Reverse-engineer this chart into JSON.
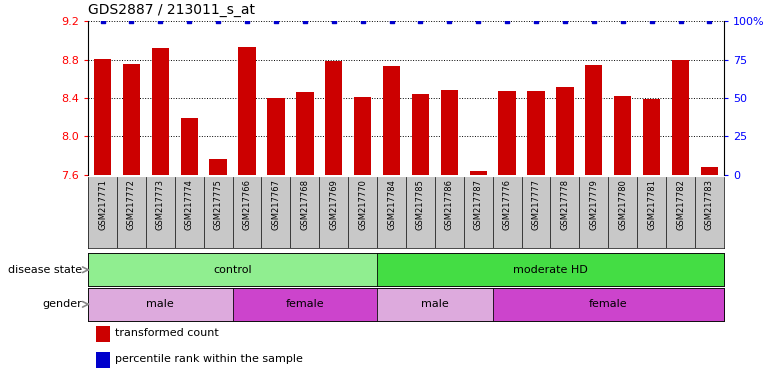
{
  "title": "GDS2887 / 213011_s_at",
  "samples": [
    "GSM217771",
    "GSM217772",
    "GSM217773",
    "GSM217774",
    "GSM217775",
    "GSM217766",
    "GSM217767",
    "GSM217768",
    "GSM217769",
    "GSM217770",
    "GSM217784",
    "GSM217785",
    "GSM217786",
    "GSM217787",
    "GSM217776",
    "GSM217777",
    "GSM217778",
    "GSM217779",
    "GSM217780",
    "GSM217781",
    "GSM217782",
    "GSM217783"
  ],
  "bar_values": [
    8.81,
    8.75,
    8.92,
    8.19,
    7.76,
    8.93,
    8.4,
    8.46,
    8.78,
    8.41,
    8.73,
    8.44,
    8.48,
    7.64,
    8.47,
    8.47,
    8.51,
    8.74,
    8.42,
    8.39,
    8.8,
    7.68
  ],
  "percentile_values": [
    100,
    100,
    100,
    100,
    100,
    100,
    100,
    100,
    100,
    100,
    100,
    100,
    100,
    100,
    100,
    100,
    100,
    100,
    100,
    100,
    100,
    100
  ],
  "bar_color": "#cc0000",
  "percentile_color": "#0000cc",
  "ymin": 7.6,
  "ymax": 9.2,
  "yticks": [
    7.6,
    8.0,
    8.4,
    8.8,
    9.2
  ],
  "right_yticks": [
    0,
    25,
    50,
    75,
    100
  ],
  "right_yticklabels": [
    "0",
    "25",
    "50",
    "75",
    "100%"
  ],
  "disease_state_groups": [
    {
      "label": "control",
      "start": 0,
      "end": 10,
      "color": "#90ee90"
    },
    {
      "label": "moderate HD",
      "start": 10,
      "end": 22,
      "color": "#44dd44"
    }
  ],
  "gender_groups": [
    {
      "label": "male",
      "start": 0,
      "end": 5,
      "color": "#ddaadd"
    },
    {
      "label": "female",
      "start": 5,
      "end": 10,
      "color": "#cc44cc"
    },
    {
      "label": "male",
      "start": 10,
      "end": 14,
      "color": "#ddaadd"
    },
    {
      "label": "female",
      "start": 14,
      "end": 22,
      "color": "#cc44cc"
    }
  ],
  "disease_label": "disease state",
  "gender_label": "gender",
  "legend_items": [
    {
      "label": "transformed count",
      "color": "#cc0000"
    },
    {
      "label": "percentile rank within the sample",
      "color": "#0000cc"
    }
  ],
  "bar_width": 0.6,
  "tick_bg_color": "#c8c8c8"
}
